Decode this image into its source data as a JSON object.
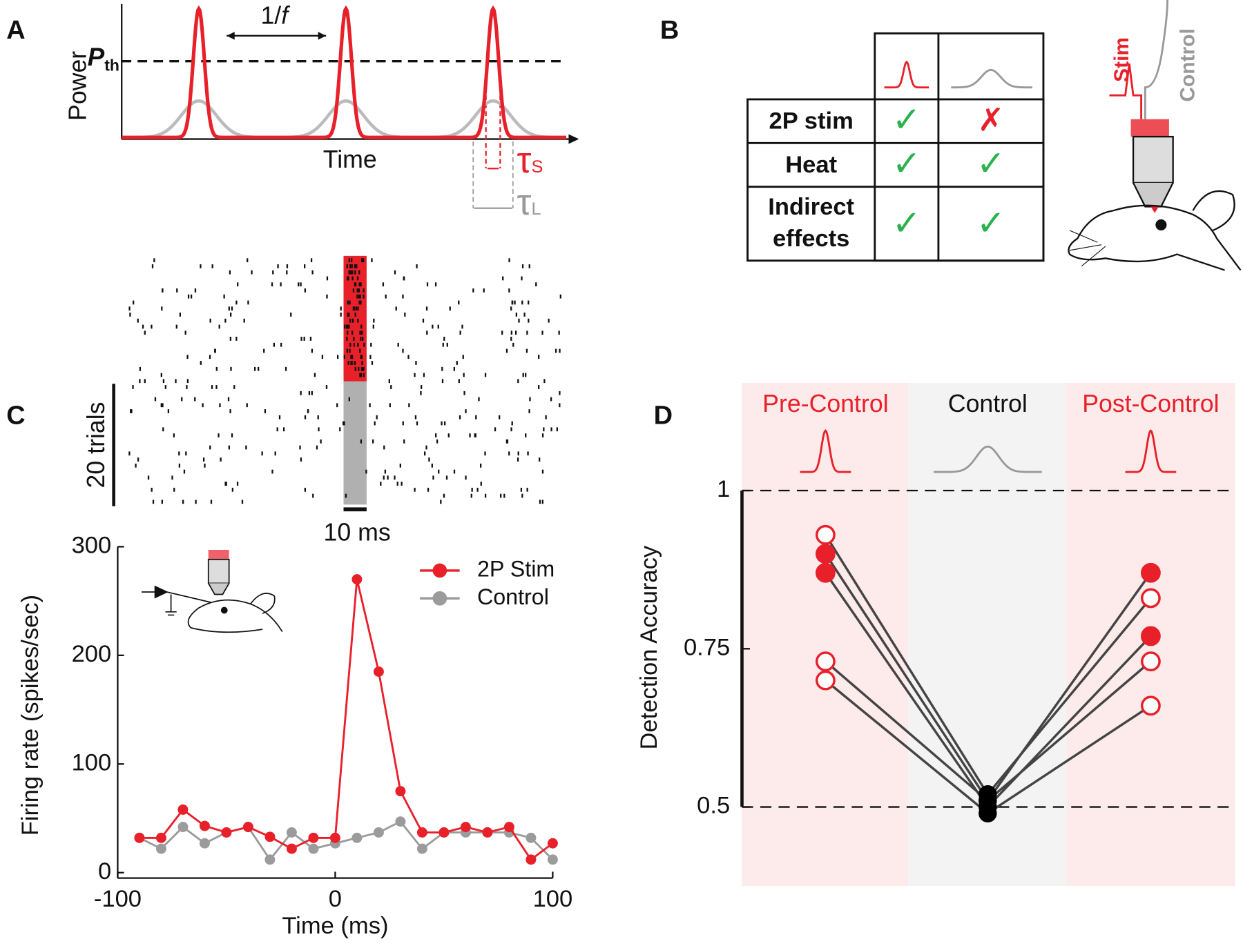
{
  "panel_labels": [
    "A",
    "B",
    "C",
    "D"
  ],
  "panel_a": {
    "ylabel": "Power",
    "xlabel": "Time",
    "threshold": "P",
    "threshold_sub": "th",
    "period": "1/",
    "period_var": "f",
    "tau_s": "τ",
    "tau_s_sub": "S",
    "tau_l": "τ",
    "tau_l_sub": "L"
  },
  "panel_b": {
    "rows": [
      [
        "2P stim",
        "✓",
        "✗"
      ],
      [
        "Heat",
        "✓",
        "✓"
      ],
      [
        "Indirect",
        "✓",
        "✓"
      ]
    ],
    "row3_line2": "effects",
    "stim_label": "Stim",
    "control_label": "Control"
  },
  "panel_c_raster": {
    "trials_label": "20 trials",
    "time_label": "10 ms"
  },
  "chart_data": [
    {
      "type": "line",
      "xlabel": "Time (ms)",
      "ylabel": "Firing rate (spikes/sec)",
      "x": [
        -90,
        -80,
        -70,
        -60,
        -50,
        -40,
        -30,
        -20,
        -10,
        0,
        10,
        20,
        30,
        40,
        50,
        60,
        70,
        80,
        90,
        100
      ],
      "series": [
        {
          "name": "2P Stim",
          "color": "#e8202a",
          "values": [
            32,
            32,
            58,
            43,
            37,
            42,
            33,
            22,
            32,
            32,
            270,
            185,
            75,
            37,
            37,
            42,
            37,
            42,
            12,
            27
          ]
        },
        {
          "name": "Control",
          "color": "#9b9b9b",
          "values": [
            32,
            22,
            42,
            27,
            37,
            42,
            12,
            37,
            22,
            27,
            32,
            37,
            47,
            22,
            37,
            37,
            37,
            37,
            32,
            12
          ]
        }
      ],
      "xlim": [
        -100,
        100
      ],
      "xticks": [
        -100,
        0,
        100
      ],
      "ylim": [
        -5,
        300
      ],
      "yticks": [
        0,
        100,
        200,
        300
      ]
    },
    {
      "type": "dot",
      "ylabel": "Detection Accuracy",
      "categories": [
        "Pre-Control",
        "Control",
        "Post-Control"
      ],
      "category_colors": [
        "#e8202a",
        "#111111",
        "#e8202a"
      ],
      "band_colors": [
        "#fdeaea",
        "#f3f3f3",
        "#fdeaea"
      ],
      "marker_color": "#e8202a",
      "control_marker_color": "#000000",
      "line_color": "#444444",
      "series": [
        {
          "values": [
            0.93,
            0.52,
            0.83
          ],
          "filled": [
            false,
            true,
            false
          ]
        },
        {
          "values": [
            0.9,
            0.51,
            0.87
          ],
          "filled": [
            true,
            true,
            true
          ]
        },
        {
          "values": [
            0.87,
            0.5,
            0.77
          ],
          "filled": [
            true,
            true,
            true
          ]
        },
        {
          "values": [
            0.73,
            0.51,
            0.73
          ],
          "filled": [
            false,
            true,
            false
          ]
        },
        {
          "values": [
            0.7,
            0.49,
            0.66
          ],
          "filled": [
            false,
            true,
            false
          ]
        }
      ],
      "ylim": [
        0.375,
        1.17
      ],
      "yticks": [
        0.5,
        0.75,
        1
      ],
      "reference_lines": [
        0.5,
        1
      ]
    }
  ]
}
